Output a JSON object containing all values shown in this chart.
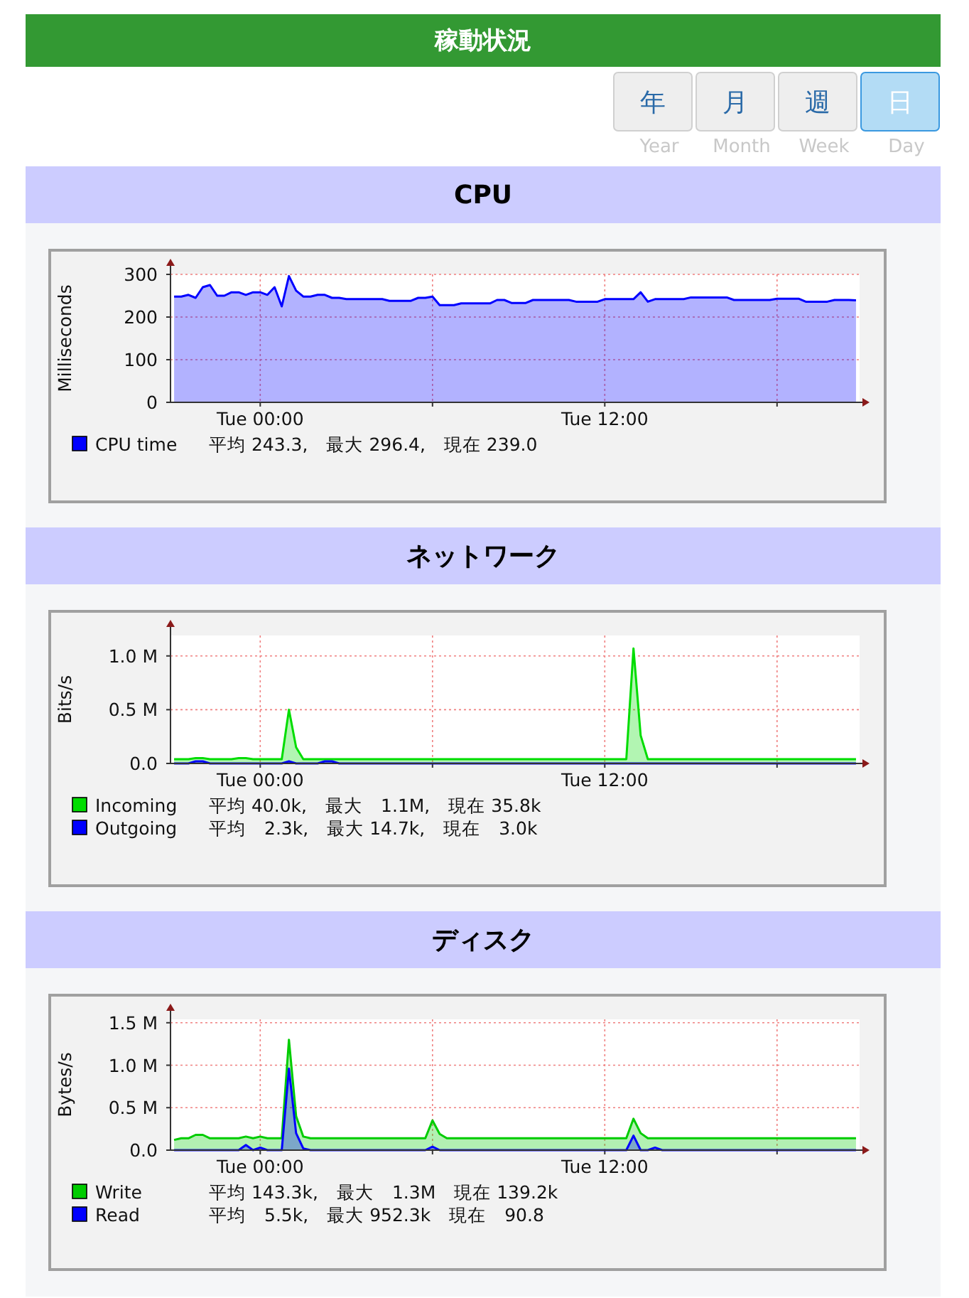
{
  "chart_data": [
    {
      "type": "other",
      "title": "稼動状況",
      "annotations": [
        "年",
        "月",
        "週",
        "日",
        "Year",
        "Month",
        "Week",
        "Day"
      ]
    },
    {
      "type": "area",
      "title": "CPU",
      "ylabel": "Milliseconds",
      "categories": [
        null,
        null,
        null,
        null,
        null,
        null,
        null,
        null,
        null,
        null,
        null,
        null,
        "Tue 00:00",
        null,
        null,
        null,
        null,
        null,
        null,
        null,
        null,
        null,
        null,
        null,
        null,
        null,
        null,
        null,
        null,
        null,
        null,
        null,
        null,
        null,
        null,
        null,
        null,
        null,
        null,
        null,
        null,
        null,
        null,
        null,
        null,
        null,
        null,
        null,
        null,
        null,
        null,
        null,
        null,
        null,
        null,
        null,
        null,
        null,
        null,
        null,
        "Tue 12:00",
        null,
        null,
        null,
        null,
        null,
        null,
        null,
        null,
        null,
        null,
        null,
        null,
        null,
        null,
        null,
        null,
        null,
        null,
        null,
        null,
        null,
        null,
        null,
        null,
        null,
        null,
        null,
        null,
        null,
        null,
        null,
        null,
        null,
        null,
        null
      ],
      "ylim": [
        0,
        300
      ],
      "yticks": [
        0,
        100,
        200,
        300
      ],
      "grid": true,
      "legend": "bottom",
      "annotations": [
        "平均 243.3,　最大 296.4,　現在 239.0"
      ],
      "series": [
        {
          "name": "CPU time",
          "color": "#0000ff",
          "values": [
            248,
            248,
            252,
            245,
            270,
            275,
            250,
            250,
            258,
            258,
            252,
            258,
            258,
            252,
            270,
            225,
            296,
            262,
            248,
            248,
            252,
            252,
            245,
            245,
            242,
            242,
            242,
            242,
            242,
            242,
            238,
            238,
            238,
            238,
            245,
            245,
            248,
            228,
            228,
            228,
            232,
            232,
            232,
            232,
            232,
            240,
            240,
            233,
            233,
            233,
            240,
            240,
            240,
            240,
            240,
            240,
            236,
            236,
            236,
            236,
            242,
            242,
            242,
            242,
            242,
            258,
            236,
            242,
            242,
            242,
            242,
            242,
            246,
            246,
            246,
            246,
            246,
            246,
            240,
            240,
            240,
            240,
            240,
            240,
            243,
            243,
            243,
            243,
            236,
            236,
            236,
            236,
            240,
            240,
            240,
            239
          ]
        }
      ]
    },
    {
      "type": "area",
      "title": "ネットワーク",
      "ylabel": "Bits/s",
      "categories": [
        null,
        null,
        null,
        null,
        null,
        null,
        null,
        null,
        null,
        null,
        null,
        null,
        "Tue 00:00",
        null,
        null,
        null,
        null,
        null,
        null,
        null,
        null,
        null,
        null,
        null,
        null,
        null,
        null,
        null,
        null,
        null,
        null,
        null,
        null,
        null,
        null,
        null,
        null,
        null,
        null,
        null,
        null,
        null,
        null,
        null,
        null,
        null,
        null,
        null,
        null,
        null,
        null,
        null,
        null,
        null,
        null,
        null,
        null,
        null,
        null,
        null,
        "Tue 12:00",
        null,
        null,
        null,
        null,
        null,
        null,
        null,
        null,
        null,
        null,
        null,
        null,
        null,
        null,
        null,
        null,
        null,
        null,
        null,
        null,
        null,
        null,
        null,
        null,
        null,
        null,
        null,
        null,
        null,
        null,
        null,
        null,
        null,
        null,
        null
      ],
      "ylim": [
        0,
        1.19
      ],
      "yticks": [
        {
          "value": 0,
          "label": "0.0"
        },
        {
          "value": 0.5,
          "label": "0.5 M"
        },
        {
          "value": 1,
          "label": "1.0 M"
        }
      ],
      "grid": true,
      "legend": "bottom",
      "annotations": [
        "平均 40.0k,　最大　1.1M,　現在 35.8k",
        "平均　2.3k,　最大 14.7k,　現在　3.0k"
      ],
      "series": [
        {
          "name": "Incoming",
          "color": "#00dd00",
          "values": [
            0.04,
            0.04,
            0.04,
            0.05,
            0.05,
            0.04,
            0.04,
            0.04,
            0.04,
            0.05,
            0.05,
            0.04,
            0.04,
            0.04,
            0.04,
            0.04,
            0.5,
            0.15,
            0.04,
            0.04,
            0.04,
            0.04,
            0.04,
            0.04,
            0.04,
            0.04,
            0.04,
            0.04,
            0.04,
            0.04,
            0.04,
            0.04,
            0.04,
            0.04,
            0.04,
            0.04,
            0.04,
            0.04,
            0.04,
            0.04,
            0.04,
            0.04,
            0.04,
            0.04,
            0.04,
            0.04,
            0.04,
            0.04,
            0.04,
            0.04,
            0.04,
            0.04,
            0.04,
            0.04,
            0.04,
            0.04,
            0.04,
            0.04,
            0.04,
            0.04,
            0.04,
            0.04,
            0.04,
            0.04,
            1.07,
            0.26,
            0.04,
            0.04,
            0.04,
            0.04,
            0.04,
            0.04,
            0.04,
            0.04,
            0.04,
            0.04,
            0.04,
            0.04,
            0.04,
            0.04,
            0.04,
            0.04,
            0.04,
            0.04,
            0.04,
            0.04,
            0.04,
            0.04,
            0.04,
            0.04,
            0.04,
            0.04,
            0.04,
            0.04,
            0.04,
            0.04
          ]
        },
        {
          "name": "Outgoing",
          "color": "#0000ff",
          "values": [
            0,
            0,
            0,
            0.02,
            0.02,
            0,
            0,
            0,
            0,
            0,
            0,
            0,
            0,
            0,
            0,
            0,
            0.02,
            0,
            0,
            0,
            0,
            0.02,
            0.02,
            0,
            0,
            0,
            0,
            0,
            0,
            0,
            0,
            0,
            0,
            0,
            0,
            0,
            0,
            0,
            0,
            0,
            0,
            0,
            0,
            0,
            0,
            0,
            0,
            0,
            0,
            0,
            0,
            0,
            0,
            0,
            0,
            0,
            0,
            0,
            0,
            0,
            0,
            0,
            0,
            0,
            0,
            0,
            0,
            0,
            0,
            0,
            0,
            0,
            0,
            0,
            0,
            0,
            0,
            0,
            0,
            0,
            0,
            0,
            0,
            0,
            0,
            0,
            0,
            0,
            0,
            0,
            0,
            0,
            0,
            0,
            0,
            0
          ]
        }
      ]
    },
    {
      "type": "area",
      "title": "ディスク",
      "ylabel": "Bytes/s",
      "categories": [
        null,
        null,
        null,
        null,
        null,
        null,
        null,
        null,
        null,
        null,
        null,
        null,
        "Tue 00:00",
        null,
        null,
        null,
        null,
        null,
        null,
        null,
        null,
        null,
        null,
        null,
        null,
        null,
        null,
        null,
        null,
        null,
        null,
        null,
        null,
        null,
        null,
        null,
        null,
        null,
        null,
        null,
        null,
        null,
        null,
        null,
        null,
        null,
        null,
        null,
        null,
        null,
        null,
        null,
        null,
        null,
        null,
        null,
        null,
        null,
        null,
        null,
        "Tue 12:00",
        null,
        null,
        null,
        null,
        null,
        null,
        null,
        null,
        null,
        null,
        null,
        null,
        null,
        null,
        null,
        null,
        null,
        null,
        null,
        null,
        null,
        null,
        null,
        null,
        null,
        null,
        null,
        null,
        null,
        null,
        null,
        null,
        null,
        null,
        null
      ],
      "ylim": [
        0,
        1.54
      ],
      "yticks": [
        {
          "value": 0,
          "label": "0.0"
        },
        {
          "value": 0.5,
          "label": "0.5 M"
        },
        {
          "value": 1,
          "label": "1.0 M"
        },
        {
          "value": 1.5,
          "label": "1.5 M"
        }
      ],
      "grid": true,
      "legend": "bottom",
      "annotations": [
        "平均 143.3k,　最大　1.3M　現在 139.2k",
        "平均　5.5k,　最大 952.3k　現在　90.8"
      ],
      "series": [
        {
          "name": "Write",
          "color": "#00cc00",
          "values": [
            0.12,
            0.14,
            0.14,
            0.18,
            0.18,
            0.14,
            0.14,
            0.14,
            0.14,
            0.14,
            0.16,
            0.14,
            0.16,
            0.14,
            0.14,
            0.14,
            1.3,
            0.4,
            0.16,
            0.14,
            0.14,
            0.14,
            0.14,
            0.14,
            0.14,
            0.14,
            0.14,
            0.14,
            0.14,
            0.14,
            0.14,
            0.14,
            0.14,
            0.14,
            0.14,
            0.14,
            0.35,
            0.19,
            0.14,
            0.14,
            0.14,
            0.14,
            0.14,
            0.14,
            0.14,
            0.14,
            0.14,
            0.14,
            0.14,
            0.14,
            0.14,
            0.14,
            0.14,
            0.14,
            0.14,
            0.14,
            0.14,
            0.14,
            0.14,
            0.14,
            0.14,
            0.14,
            0.14,
            0.14,
            0.37,
            0.2,
            0.14,
            0.14,
            0.14,
            0.14,
            0.14,
            0.14,
            0.14,
            0.14,
            0.14,
            0.14,
            0.14,
            0.14,
            0.14,
            0.14,
            0.14,
            0.14,
            0.14,
            0.14,
            0.14,
            0.14,
            0.14,
            0.14,
            0.14,
            0.14,
            0.14,
            0.14,
            0.14,
            0.14,
            0.14,
            0.14
          ]
        },
        {
          "name": "Read",
          "color": "#0000ff",
          "values": [
            0,
            0,
            0,
            0,
            0,
            0,
            0,
            0,
            0,
            0,
            0.06,
            0,
            0.03,
            0,
            0,
            0,
            0.96,
            0.2,
            0.02,
            0,
            0,
            0,
            0,
            0,
            0,
            0,
            0,
            0,
            0,
            0,
            0,
            0,
            0,
            0,
            0,
            0,
            0.04,
            0,
            0,
            0,
            0,
            0,
            0,
            0,
            0,
            0,
            0,
            0,
            0,
            0,
            0,
            0,
            0,
            0,
            0,
            0,
            0,
            0,
            0,
            0,
            0,
            0,
            0,
            0,
            0.17,
            0,
            0,
            0.03,
            0,
            0,
            0,
            0,
            0,
            0,
            0,
            0,
            0,
            0,
            0,
            0,
            0,
            0,
            0,
            0,
            0,
            0,
            0,
            0,
            0,
            0,
            0,
            0,
            0,
            0,
            0,
            0
          ]
        }
      ]
    }
  ]
}
